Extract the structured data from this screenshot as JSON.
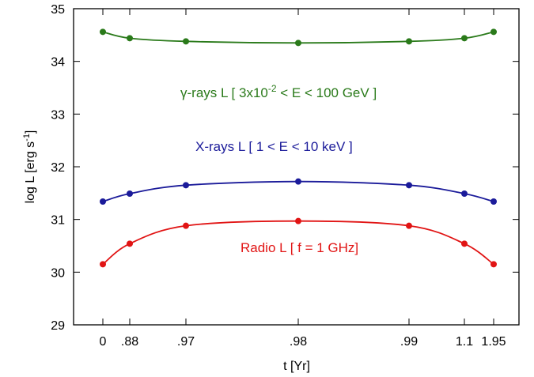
{
  "chart_data": {
    "type": "line",
    "xlabel": "t [Yr]",
    "ylabel_main": "log L [erg s",
    "ylabel_sup": "-1",
    "ylabel_close": "]",
    "ylim": [
      29,
      35
    ],
    "yticks": [
      29,
      30,
      31,
      32,
      33,
      34,
      35
    ],
    "x_categories": [
      "0",
      ".88",
      ".97",
      ".98",
      ".99",
      "1.1",
      "1.95"
    ],
    "grid": false,
    "series": [
      {
        "name": "gamma",
        "color": "#2a7a1a",
        "values": [
          34.56,
          34.44,
          34.38,
          34.35,
          34.38,
          34.44,
          34.56
        ],
        "label": {
          "prefix": "γ-rays L [ 3x10",
          "sup": "-2",
          "suffix": " < E < 100 GeV ]"
        }
      },
      {
        "name": "xrays",
        "color": "#1b1b9a",
        "values": [
          31.34,
          31.49,
          31.65,
          31.72,
          31.65,
          31.49,
          31.34
        ],
        "label": {
          "prefix": "X-rays L [ 1 < E < 10 keV ]",
          "sup": "",
          "suffix": ""
        }
      },
      {
        "name": "radio",
        "color": "#e11414",
        "values": [
          30.15,
          30.54,
          30.88,
          30.97,
          30.88,
          30.54,
          30.15
        ],
        "label": {
          "prefix": "Radio L [ f = 1 GHz]",
          "sup": "",
          "suffix": ""
        }
      }
    ]
  }
}
